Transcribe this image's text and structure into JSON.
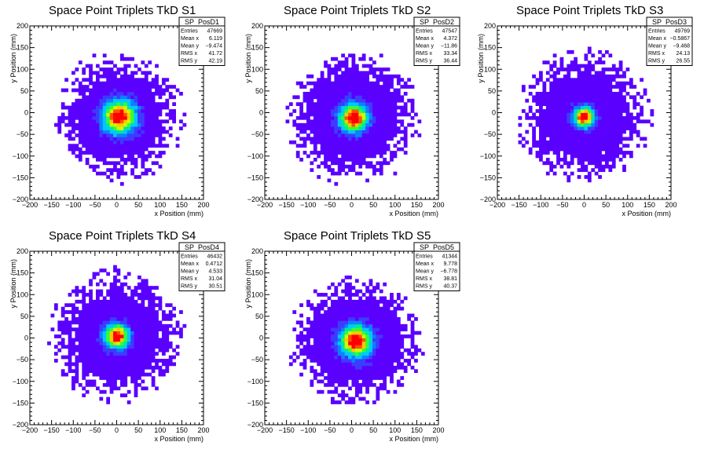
{
  "chart_data": [
    {
      "type": "heatmap",
      "title": "Space Point Triplets TkD S1",
      "xlabel": "x Position (mm)",
      "ylabel": "y Position (mm)",
      "xlim": [
        -200,
        200
      ],
      "ylim": [
        -200,
        200
      ],
      "xticks": [
        "−200",
        "−150",
        "−100",
        "−50",
        "0",
        "50",
        "100",
        "150",
        "200"
      ],
      "yticks": [
        "200",
        "150",
        "100",
        "50",
        "0",
        "−50",
        "−100",
        "−150",
        "−200"
      ],
      "distribution": {
        "mean_x": 6.119,
        "mean_y": -9.474,
        "rms_x": 41.72,
        "rms_y": 42.19,
        "edge": 155
      },
      "stats": {
        "name": "SP_PosD1",
        "rows": [
          {
            "label": "Entries",
            "value": "47669"
          },
          {
            "label": "Mean x",
            "value": "6.119"
          },
          {
            "label": "Mean y",
            "value": "−9.474"
          },
          {
            "label": "RMS x",
            "value": "41.72"
          },
          {
            "label": "RMS y",
            "value": "42.19"
          }
        ]
      }
    },
    {
      "type": "heatmap",
      "title": "Space Point Triplets TkD S2",
      "xlabel": "x Position (mm)",
      "ylabel": "y Position (mm)",
      "xlim": [
        -200,
        200
      ],
      "ylim": [
        -200,
        200
      ],
      "xticks": [
        "−200",
        "−150",
        "−100",
        "−50",
        "0",
        "50",
        "100",
        "150",
        "200"
      ],
      "yticks": [
        "200",
        "150",
        "100",
        "50",
        "0",
        "−50",
        "−100",
        "−150",
        "−200"
      ],
      "distribution": {
        "mean_x": 4.372,
        "mean_y": -11.86,
        "rms_x": 33.34,
        "rms_y": 36.44,
        "edge": 160
      },
      "stats": {
        "name": "SP_PosD2",
        "rows": [
          {
            "label": "Entries",
            "value": "47547"
          },
          {
            "label": "Mean x",
            "value": "4.372"
          },
          {
            "label": "Mean y",
            "value": "−11.86"
          },
          {
            "label": "RMS x",
            "value": "33.34"
          },
          {
            "label": "RMS y",
            "value": "36.44"
          }
        ]
      }
    },
    {
      "type": "heatmap",
      "title": "Space Point Triplets TkD S3",
      "xlabel": "x Position (mm)",
      "ylabel": "y Position (mm)",
      "xlim": [
        -200,
        200
      ],
      "ylim": [
        -200,
        200
      ],
      "xticks": [
        "−200",
        "−150",
        "−100",
        "−50",
        "0",
        "50",
        "100",
        "150",
        "200"
      ],
      "yticks": [
        "200",
        "150",
        "100",
        "50",
        "0",
        "−50",
        "−100",
        "−150",
        "−200"
      ],
      "distribution": {
        "mean_x": -0.5867,
        "mean_y": -9.468,
        "rms_x": 24.13,
        "rms_y": 26.55,
        "edge": 160
      },
      "stats": {
        "name": "SP_PosD3",
        "rows": [
          {
            "label": "Entries",
            "value": "49769"
          },
          {
            "label": "Mean x",
            "value": "−0.5867"
          },
          {
            "label": "Mean y",
            "value": "−9.468"
          },
          {
            "label": "RMS x",
            "value": "24.13"
          },
          {
            "label": "RMS y",
            "value": "26.55"
          }
        ]
      }
    },
    {
      "type": "heatmap",
      "title": "Space Point Triplets TkD S4",
      "xlabel": "x Position (mm)",
      "ylabel": "y Position (mm)",
      "xlim": [
        -200,
        200
      ],
      "ylim": [
        -200,
        200
      ],
      "xticks": [
        "−200",
        "−150",
        "−100",
        "−50",
        "0",
        "50",
        "100",
        "150",
        "200"
      ],
      "yticks": [
        "200",
        "150",
        "100",
        "50",
        "0",
        "−50",
        "−100",
        "−150",
        "−200"
      ],
      "distribution": {
        "mean_x": 0.4712,
        "mean_y": 4.533,
        "rms_x": 31.04,
        "rms_y": 30.51,
        "edge": 160
      },
      "stats": {
        "name": "SP_PosD4",
        "rows": [
          {
            "label": "Entries",
            "value": "46432"
          },
          {
            "label": "Mean x",
            "value": "0.4712"
          },
          {
            "label": "Mean y",
            "value": "4.533"
          },
          {
            "label": "RMS x",
            "value": "31.04"
          },
          {
            "label": "RMS y",
            "value": "30.51"
          }
        ]
      }
    },
    {
      "type": "heatmap",
      "title": "Space Point Triplets TkD S5",
      "xlabel": "x Position (mm)",
      "ylabel": "y Position (mm)",
      "xlim": [
        -200,
        200
      ],
      "ylim": [
        -200,
        200
      ],
      "xticks": [
        "−200",
        "−150",
        "−100",
        "−50",
        "0",
        "50",
        "100",
        "150",
        "200"
      ],
      "yticks": [
        "200",
        "150",
        "100",
        "50",
        "0",
        "−50",
        "−100",
        "−150",
        "−200"
      ],
      "distribution": {
        "mean_x": 9.778,
        "mean_y": -6.778,
        "rms_x": 38.81,
        "rms_y": 40.37,
        "edge": 160
      },
      "stats": {
        "name": "SP_PosD5",
        "rows": [
          {
            "label": "Entries",
            "value": "41344"
          },
          {
            "label": "Mean x",
            "value": "9.778"
          },
          {
            "label": "Mean y",
            "value": "−6.778"
          },
          {
            "label": "RMS x",
            "value": "38.81"
          },
          {
            "label": "RMS y",
            "value": "40.37"
          }
        ]
      }
    }
  ],
  "palette": [
    "#5a00ff",
    "#3c3cff",
    "#0a82ff",
    "#00c8ff",
    "#00e6a0",
    "#32ff32",
    "#c8ff00",
    "#ffc800",
    "#ff5000",
    "#ff0000"
  ]
}
